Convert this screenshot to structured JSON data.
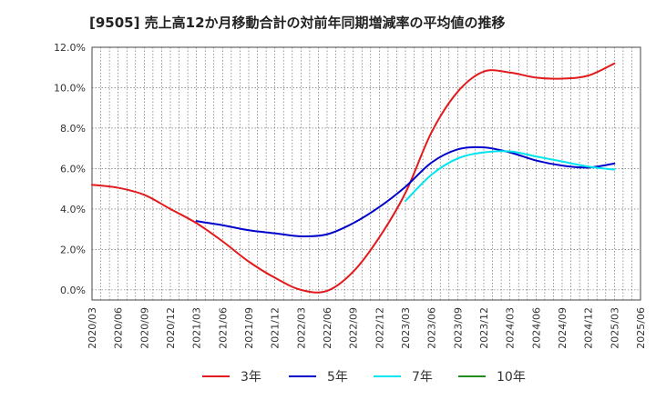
{
  "chart_data": {
    "type": "line",
    "title": "[9505]  売上高12か月移動合計の対前年同期増減率の平均値の推移",
    "xlabel": "",
    "ylabel": "",
    "ylim": [
      -0.5,
      12
    ],
    "grid": true,
    "legend_position": "bottom",
    "x": [
      "2020/03",
      "2020/06",
      "2020/09",
      "2020/12",
      "2021/03",
      "2021/06",
      "2021/09",
      "2021/12",
      "2022/03",
      "2022/06",
      "2022/09",
      "2022/12",
      "2023/03",
      "2023/06",
      "2023/09",
      "2023/12",
      "2024/03",
      "2024/06",
      "2024/09",
      "2024/12",
      "2025/03",
      "2025/06"
    ],
    "yticks": [
      "0.0%",
      "2.0%",
      "4.0%",
      "6.0%",
      "8.0%",
      "10.0%",
      "12.0%"
    ],
    "series": [
      {
        "name": "3年",
        "color": "#e31a1c",
        "values": [
          5.2,
          5.05,
          4.7,
          4.0,
          3.3,
          2.4,
          1.4,
          0.6,
          0.0,
          -0.05,
          0.9,
          2.6,
          4.8,
          7.8,
          9.8,
          10.8,
          10.75,
          10.5,
          10.45,
          10.6,
          11.2,
          null
        ]
      },
      {
        "name": "5年",
        "color": "#0000cc",
        "values": [
          null,
          null,
          null,
          null,
          3.4,
          3.2,
          2.95,
          2.8,
          2.65,
          2.75,
          3.3,
          4.1,
          5.1,
          6.3,
          6.95,
          7.05,
          6.8,
          6.4,
          6.15,
          6.05,
          6.25,
          null
        ]
      },
      {
        "name": "7年",
        "color": "#00e5ee",
        "values": [
          null,
          null,
          null,
          null,
          null,
          null,
          null,
          null,
          null,
          null,
          null,
          null,
          4.4,
          5.7,
          6.5,
          6.8,
          6.85,
          6.6,
          6.35,
          6.1,
          5.95,
          null
        ]
      },
      {
        "name": "10年",
        "color": "#228b22",
        "values": [
          null,
          null,
          null,
          null,
          null,
          null,
          null,
          null,
          null,
          null,
          null,
          null,
          null,
          null,
          null,
          null,
          null,
          null,
          null,
          null,
          null,
          null
        ]
      }
    ]
  }
}
